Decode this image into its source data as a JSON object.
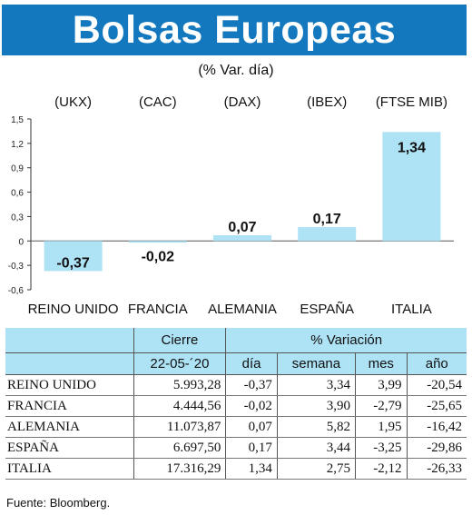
{
  "header": {
    "title": "Bolsas Europeas",
    "subtitle": "(% Var. día)"
  },
  "chart_data": {
    "type": "bar",
    "indices": [
      "(UKX)",
      "(CAC)",
      "(DAX)",
      "(IBEX)",
      "(FTSE MIB)"
    ],
    "categories": [
      "REINO UNIDO",
      "FRANCIA",
      "ALEMANIA",
      "ESPAÑA",
      "ITALIA"
    ],
    "values": [
      -0.37,
      -0.02,
      0.07,
      0.17,
      1.34
    ],
    "value_labels": [
      "-0,37",
      "-0,02",
      "0,07",
      "0,17",
      "1,34"
    ],
    "ylim": [
      -0.6,
      1.5
    ],
    "yticks": [
      -0.6,
      -0.3,
      0,
      0.3,
      0.6,
      0.9,
      1.2,
      1.5
    ],
    "ytick_labels": [
      "-0,6",
      "-0,3",
      "0",
      "0,3",
      "0,6",
      "0,9",
      "1,2",
      "1,5"
    ],
    "bar_color": "#aee2f5",
    "grid": false
  },
  "table": {
    "group_headers": {
      "cierre": "Cierre",
      "variacion": "% Variación"
    },
    "col_headers": {
      "date": "22-05-´20",
      "dia": "día",
      "semana": "semana",
      "mes": "mes",
      "ano": "año"
    },
    "rows": [
      {
        "name": "REINO UNIDO",
        "cierre": "5.993,28",
        "dia": "-0,37",
        "semana": "3,34",
        "mes": "3,99",
        "ano": "-20,54"
      },
      {
        "name": "FRANCIA",
        "cierre": "4.444,56",
        "dia": "-0,02",
        "semana": "3,90",
        "mes": "-2,79",
        "ano": "-25,65"
      },
      {
        "name": "ALEMANIA",
        "cierre": "11.073,87",
        "dia": "0,07",
        "semana": "5,82",
        "mes": "1,95",
        "ano": "-16,42"
      },
      {
        "name": "ESPAÑA",
        "cierre": "6.697,50",
        "dia": "0,17",
        "semana": "3,44",
        "mes": "-3,25",
        "ano": "-29,86"
      },
      {
        "name": "ITALIA",
        "cierre": "17.316,29",
        "dia": "1,34",
        "semana": "2,75",
        "mes": "-2,12",
        "ano": "-26,33"
      }
    ],
    "header_color": "#aee2f5"
  },
  "footer": {
    "source": "Fuente: Bloomberg."
  },
  "colors": {
    "title_bar": "#1478bf"
  }
}
